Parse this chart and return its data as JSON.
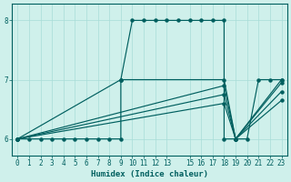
{
  "bg_color": "#cff0eb",
  "grid_color": "#a8ddd7",
  "line_color": "#005f5f",
  "xlabel": "Humidex (Indice chaleur)",
  "xlabel_fontsize": 6.5,
  "tick_fontsize": 5.5,
  "xlim": [
    -0.5,
    23.5
  ],
  "ylim": [
    5.72,
    8.28
  ],
  "yticks": [
    6,
    7,
    8
  ],
  "xticks": [
    0,
    1,
    2,
    3,
    4,
    5,
    6,
    7,
    8,
    9,
    10,
    11,
    12,
    13,
    15,
    16,
    17,
    18,
    19,
    20,
    21,
    22,
    23
  ],
  "step_line": {
    "x": [
      0,
      1,
      2,
      3,
      4,
      5,
      6,
      7,
      8,
      9,
      9,
      10,
      11,
      12,
      13,
      14,
      15,
      16,
      17,
      18,
      18,
      19,
      20,
      21,
      22,
      23
    ],
    "y": [
      6,
      6,
      6,
      6,
      6,
      6,
      6,
      6,
      6,
      6,
      7,
      8,
      8,
      8,
      8,
      8,
      8,
      8,
      8,
      8,
      6,
      6,
      6,
      7,
      7,
      7
    ]
  },
  "diag_lines": [
    {
      "x": [
        0,
        9,
        18,
        19,
        23
      ],
      "y": [
        6,
        7,
        7,
        6,
        7
      ]
    },
    {
      "x": [
        0,
        18,
        19,
        23
      ],
      "y": [
        6,
        6.9,
        6,
        6.95
      ]
    },
    {
      "x": [
        0,
        18,
        19,
        23
      ],
      "y": [
        6,
        6.75,
        6,
        6.8
      ]
    },
    {
      "x": [
        0,
        18,
        19,
        23
      ],
      "y": [
        6,
        6.6,
        6,
        6.65
      ]
    }
  ]
}
